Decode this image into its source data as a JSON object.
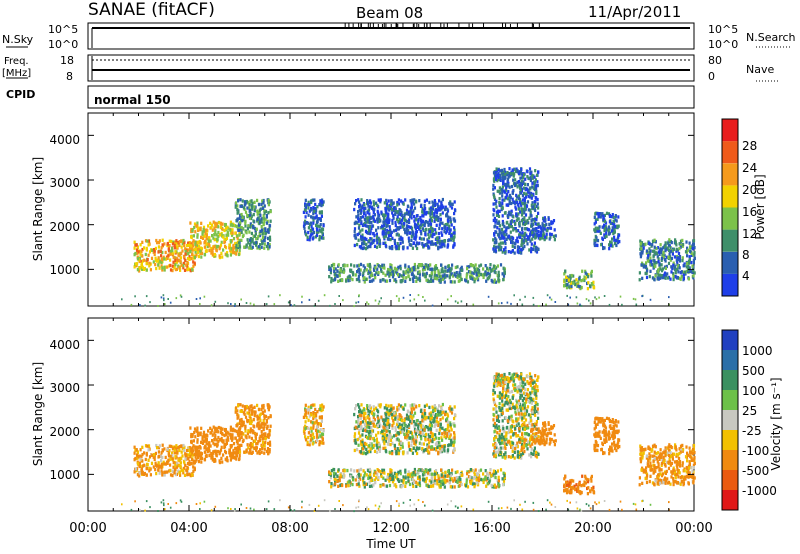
{
  "header": {
    "station": "SANAE (fitACF)",
    "beam": "Beam 08",
    "date": "11/Apr/2011"
  },
  "side_labels": {
    "nsky": "N.Sky",
    "nsearch": "N.Search",
    "freq_line1": "Freq.",
    "freq_line2": "[MHz]",
    "nave": "Nave",
    "cpid": "CPID",
    "cpid_value": "normal 150"
  },
  "noise_axis": {
    "left_top": "10^5",
    "left_bottom": "10^0",
    "right_top": "10^5",
    "right_bottom": "10^0"
  },
  "freq_axis": {
    "left_ticks": [
      "18",
      "8"
    ],
    "right_ticks": [
      "80",
      "0"
    ]
  },
  "x_axis": {
    "ticks": [
      "00:00",
      "04:00",
      "08:00",
      "12:00",
      "16:00",
      "20:00",
      "00:00"
    ],
    "label": "Time UT"
  },
  "power_panel": {
    "ylabel": "Slant Range [km]",
    "yticks": [
      "1000",
      "2000",
      "3000",
      "4000"
    ],
    "cbar_label": "Power [dB]",
    "cbar_ticks": [
      "4",
      "8",
      "12",
      "16",
      "20",
      "24",
      "28"
    ],
    "cbar_colors": [
      "#1f3fe8",
      "#2a5fb0",
      "#3f8f6a",
      "#7cc24a",
      "#f2d200",
      "#f59a1c",
      "#ef5a1a",
      "#e81c1c"
    ]
  },
  "velocity_panel": {
    "ylabel": "Slant Range [km]",
    "yticks": [
      "1000",
      "2000",
      "3000",
      "4000"
    ],
    "cbar_label": "Velocity [m s⁻¹]",
    "cbar_ticks": [
      "1000",
      "500",
      "100",
      "25",
      "-25",
      "-100",
      "-500",
      "-1000"
    ],
    "cbar_colors": [
      "#2040c0",
      "#2a6fa8",
      "#3a9060",
      "#6cc048",
      "#c8c8c0",
      "#f2c000",
      "#f08a10",
      "#ea5a10",
      "#e01818"
    ]
  },
  "chart_data": {
    "type": "heatmap",
    "x_range_hours": [
      0,
      24
    ],
    "y_range_km": [
      180,
      4500
    ],
    "power_range_db": [
      0,
      32
    ],
    "velocity_range_ms": [
      -1000,
      1000
    ],
    "echo_regions": [
      {
        "t0": 1.8,
        "t1": 4.2,
        "r0": 1000,
        "r1": 1700,
        "power": 20,
        "velocity": -150
      },
      {
        "t0": 4.0,
        "t1": 6.0,
        "r0": 1300,
        "r1": 2100,
        "power": 18,
        "velocity": -250
      },
      {
        "t0": 5.8,
        "t1": 7.2,
        "r0": 1500,
        "r1": 2600,
        "power": 10,
        "velocity": -200
      },
      {
        "t0": 8.5,
        "t1": 9.3,
        "r0": 1700,
        "r1": 2600,
        "power": 6,
        "velocity": -100
      },
      {
        "t0": 9.5,
        "t1": 16.5,
        "r0": 750,
        "r1": 1150,
        "power": 10,
        "velocity": 0
      },
      {
        "t0": 10.5,
        "t1": 14.5,
        "r0": 1500,
        "r1": 2600,
        "power": 5,
        "velocity": 0
      },
      {
        "t0": 16.0,
        "t1": 17.8,
        "r0": 1400,
        "r1": 3300,
        "power": 6,
        "velocity": 0
      },
      {
        "t0": 17.5,
        "t1": 18.5,
        "r0": 1700,
        "r1": 2200,
        "power": 6,
        "velocity": -300
      },
      {
        "t0": 18.8,
        "t1": 20.0,
        "r0": 600,
        "r1": 1000,
        "power": 12,
        "velocity": -400
      },
      {
        "t0": 20.0,
        "t1": 21.0,
        "r0": 1500,
        "r1": 2300,
        "power": 6,
        "velocity": -300
      },
      {
        "t0": 21.8,
        "t1": 24.0,
        "r0": 800,
        "r1": 1700,
        "power": 8,
        "velocity": -150
      }
    ]
  }
}
